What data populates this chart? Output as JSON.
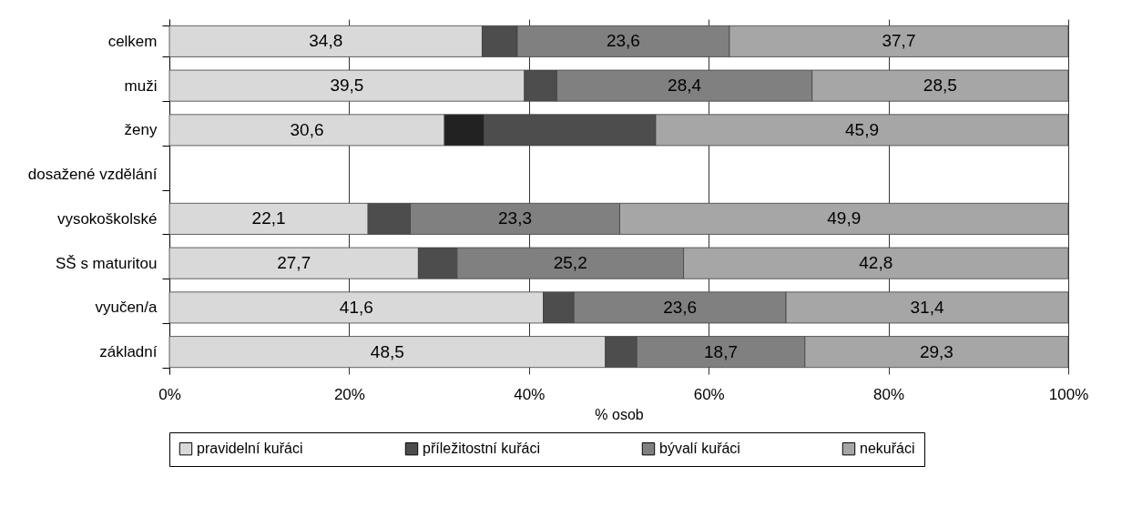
{
  "chart_data": {
    "type": "bar",
    "orientation": "horizontal",
    "stacked": true,
    "xlabel": "% osob",
    "categories": [
      "celkem",
      "muži",
      "ženy",
      "dosažené vzdělání",
      "vysokoškolské",
      "SŠ s maturitou",
      "vyučen/a",
      "základní"
    ],
    "series": [
      {
        "name": "pravidelní kuřáci",
        "color": "#d9d9d9",
        "values": [
          34.8,
          39.5,
          30.6,
          null,
          22.1,
          27.7,
          41.6,
          48.5
        ],
        "value_labels": [
          "34,8",
          "39,5",
          "30,6",
          null,
          "22,1",
          "27,7",
          "41,6",
          "48,5"
        ]
      },
      {
        "name": "příležitostní kuřáci",
        "color": "#4d4d4d",
        "colors": [
          "#4d4d4d",
          "#4d4d4d",
          "#222222",
          null,
          "#4d4d4d",
          "#4d4d4d",
          "#4d4d4d",
          "#4d4d4d"
        ],
        "values": [
          3.9,
          3.6,
          4.4,
          null,
          4.7,
          4.3,
          3.4,
          3.5
        ]
      },
      {
        "name": "bývalí kuřáci",
        "color": "#808080",
        "colors": [
          "#808080",
          "#808080",
          "#4d4d4d",
          null,
          "#808080",
          "#808080",
          "#808080",
          "#808080"
        ],
        "values": [
          23.6,
          28.4,
          19.1,
          null,
          23.3,
          25.2,
          23.6,
          18.7
        ],
        "value_labels": [
          "23,6",
          "28,4",
          null,
          null,
          "23,3",
          "25,2",
          "23,6",
          "18,7"
        ]
      },
      {
        "name": "nekuřáci",
        "color": "#a6a6a6",
        "values": [
          37.7,
          28.5,
          45.9,
          null,
          49.9,
          42.8,
          31.4,
          29.3
        ],
        "value_labels": [
          "37,7",
          "28,5",
          "45,9",
          null,
          "49,9",
          "42,8",
          "31,4",
          "29,3"
        ]
      }
    ],
    "xlim": [
      0,
      100
    ],
    "xticks": [
      {
        "value": 0,
        "label": "0%"
      },
      {
        "value": 20,
        "label": "20%"
      },
      {
        "value": 40,
        "label": "40%"
      },
      {
        "value": 60,
        "label": "60%"
      },
      {
        "value": 80,
        "label": "80%"
      },
      {
        "value": 100,
        "label": "100%"
      }
    ],
    "grid": "x",
    "legend": "bottom"
  }
}
